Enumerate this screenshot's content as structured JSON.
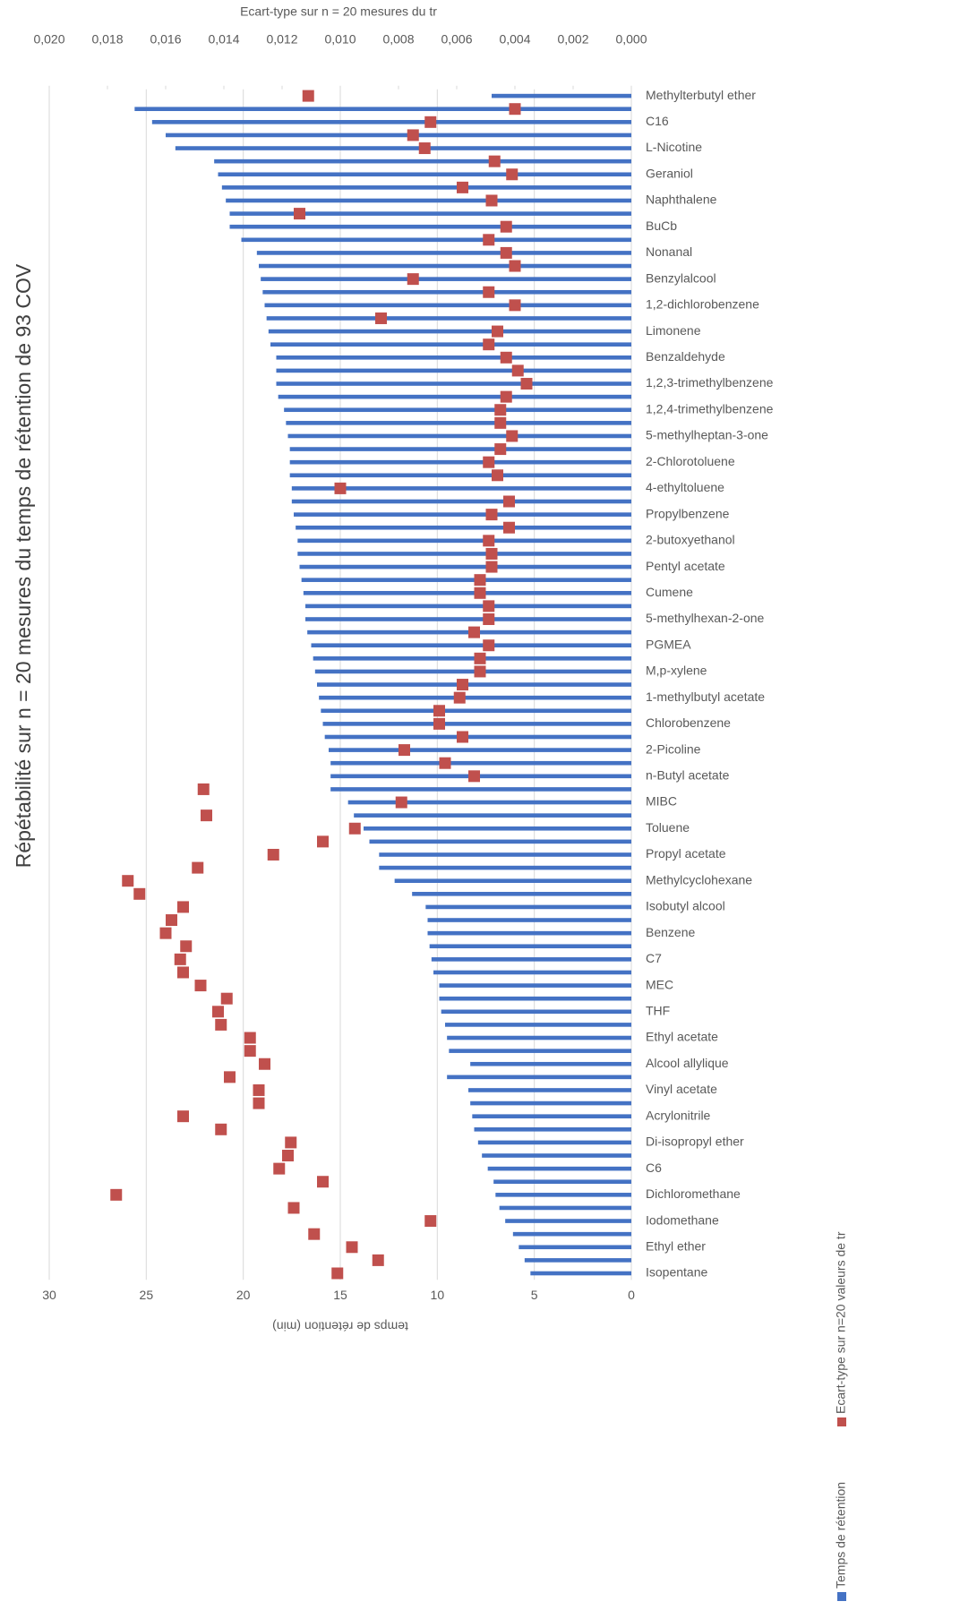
{
  "chart_data": {
    "type": "bar",
    "title": "Répétabilité sur n = 20 mesures du temps de rétention de 93 COV",
    "y_label": "temps de rétention (min)",
    "y2_label": "Ecart-type sur n = 20 mesures du tr",
    "categories": [
      "Isopentane",
      null,
      "Ethyl ether",
      null,
      "Iodomethane",
      null,
      "Dichloromethane",
      null,
      "C6",
      null,
      "Di-isopropyl ether",
      null,
      "Acrylonitrile",
      null,
      "Vinyl acetate",
      null,
      "Alcool allylique",
      null,
      "Ethyl acetate",
      null,
      "THF",
      null,
      "MEC",
      null,
      "C7",
      null,
      "Benzene",
      null,
      "Isobutyl alcool",
      null,
      "Methylcyclohexane",
      null,
      "Propyl acetate",
      null,
      "Toluene",
      null,
      "MIBC",
      null,
      "n-Butyl acetate",
      null,
      "2-Picoline",
      null,
      "Chlorobenzene",
      null,
      "1-methylbutyl acetate",
      null,
      "M,p-xylene",
      null,
      "PGMEA",
      null,
      "5-methylhexan-2-one",
      null,
      "Cumene",
      null,
      "Pentyl acetate",
      null,
      "2-butoxyethanol",
      null,
      "Propylbenzene",
      null,
      "4-ethyltoluene",
      null,
      "2-Chlorotoluene",
      null,
      "5-methylheptan-3-one",
      null,
      "1,2,4-trimethylbenzene",
      null,
      "1,2,3-trimethylbenzene",
      null,
      "Benzaldehyde",
      null,
      "Limonene",
      null,
      "1,2-dichlorobenzene",
      null,
      "Benzylalcool",
      null,
      "Nonanal",
      null,
      "BuCb",
      null,
      "Naphthalene",
      null,
      "Geraniol",
      null,
      "L-Nicotine",
      null,
      "C16",
      null,
      "Methylterbutyl ether"
    ],
    "series": [
      {
        "name": "Temps de rétention",
        "color": "#4472c4",
        "type": "bar",
        "values": [
          5.2,
          5.5,
          5.8,
          6.1,
          6.5,
          6.8,
          7.0,
          7.1,
          7.4,
          7.7,
          7.9,
          8.1,
          8.2,
          8.3,
          8.4,
          9.5,
          8.3,
          9.4,
          9.5,
          9.6,
          9.8,
          9.9,
          9.9,
          10.2,
          10.3,
          10.4,
          10.5,
          10.5,
          10.6,
          11.3,
          12.2,
          13.0,
          13.0,
          13.5,
          13.8,
          14.3,
          14.6,
          15.5,
          15.5,
          15.5,
          15.6,
          15.8,
          15.9,
          16.0,
          16.1,
          16.2,
          16.3,
          16.4,
          16.5,
          16.7,
          16.8,
          16.8,
          16.9,
          17.0,
          17.1,
          17.2,
          17.2,
          17.3,
          17.4,
          17.5,
          17.5,
          17.6,
          17.6,
          17.6,
          17.7,
          17.8,
          17.9,
          18.2,
          18.3,
          18.3,
          18.3,
          18.6,
          18.7,
          18.8,
          18.9,
          19.0,
          19.1,
          19.2,
          19.3,
          20.1,
          20.7,
          20.7,
          20.9,
          21.1,
          21.3,
          21.5,
          23.5,
          24.0,
          24.7,
          25.6,
          7.2
        ]
      },
      {
        "name": "Ecart-type sur n=20 valeurs de tr",
        "color": "#c0504d",
        "type": "scatter",
        "axis": "y2",
        "values": [
          0.0101,
          0.0087,
          0.0096,
          0.0109,
          0.0069,
          0.0116,
          0.0177,
          0.0106,
          0.0121,
          0.0118,
          0.0117,
          0.0141,
          0.0154,
          0.0128,
          0.0128,
          0.0138,
          0.0126,
          0.0131,
          0.0131,
          0.0141,
          0.0142,
          0.0139,
          0.0148,
          0.0154,
          0.0155,
          0.0153,
          0.016,
          0.0158,
          0.0154,
          0.0169,
          0.0173,
          0.0149,
          0.0123,
          0.0106,
          0.0095,
          0.0146,
          0.0079,
          0.0147,
          0.0054,
          0.0064,
          0.0078,
          0.0058,
          0.0066,
          0.0066,
          0.0059,
          0.0058,
          0.0052,
          0.0052,
          0.0049,
          0.0054,
          0.0049,
          0.0049,
          0.0052,
          0.0052,
          0.0048,
          0.0048,
          0.0049,
          0.0042,
          0.0048,
          0.0042,
          0.01,
          0.0046,
          0.0049,
          0.0045,
          0.0041,
          0.0045,
          0.0045,
          0.0043,
          0.0036,
          0.0039,
          0.0043,
          0.0049,
          0.0046,
          0.0086,
          0.004,
          0.0049,
          0.0075,
          0.004,
          0.0043,
          0.0049,
          0.0043,
          0.0114,
          0.0048,
          0.0058,
          0.0041,
          0.0047,
          0.0071,
          0.0075,
          0.0069,
          0.004,
          0.0111
        ]
      }
    ],
    "ylim": [
      0,
      30
    ],
    "yticks": [
      0,
      5,
      10,
      15,
      20,
      25,
      30
    ],
    "y2lim": [
      0,
      0.02
    ],
    "y2ticks": [
      {
        "value": 0,
        "label": "0,000"
      },
      {
        "value": 0.002,
        "label": "0,002"
      },
      {
        "value": 0.004,
        "label": "0,004"
      },
      {
        "value": 0.006,
        "label": "0,006"
      },
      {
        "value": 0.008,
        "label": "0,008"
      },
      {
        "value": 0.01,
        "label": "0,010"
      },
      {
        "value": 0.012,
        "label": "0,012"
      },
      {
        "value": 0.014,
        "label": "0,014"
      },
      {
        "value": 0.016,
        "label": "0,016"
      },
      {
        "value": 0.018,
        "label": "0,018"
      },
      {
        "value": 0.02,
        "label": "0,020"
      }
    ],
    "grid": true,
    "legend": "bottom"
  }
}
